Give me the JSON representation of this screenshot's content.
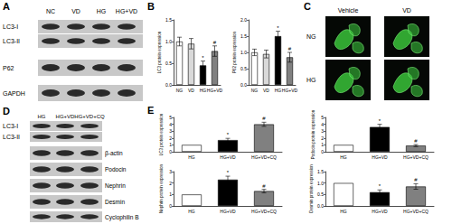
{
  "panels": {
    "A": {
      "label": "A",
      "lanes": [
        "NC",
        "VD",
        "HG",
        "HG+VD"
      ],
      "bands": [
        "LC3-I",
        "LC3-II",
        "P62",
        "GAPDH"
      ]
    },
    "B": {
      "label": "B"
    },
    "C": {
      "label": "C",
      "columns": [
        "Vehicle",
        "VD"
      ],
      "rows": [
        "NG",
        "HG"
      ]
    },
    "D": {
      "label": "D",
      "lanes": [
        "HG",
        "HG+VD",
        "HG+VD+CQ"
      ],
      "bands": [
        "LC3-I",
        "LC3-II",
        "β-actin",
        "Podocin",
        "Nephrin",
        "Desmin",
        "Cyclophilin B"
      ]
    },
    "E": {
      "label": "E"
    }
  },
  "chart_data": [
    {
      "type": "bar",
      "y_label": "LC3 protein expression",
      "categories": [
        "NG",
        "VD",
        "HG",
        "HG+VD"
      ],
      "values": [
        1.0,
        0.95,
        0.45,
        0.78
      ],
      "errors": [
        0.1,
        0.12,
        0.1,
        0.12
      ],
      "annotations": [
        null,
        null,
        "*",
        "#"
      ],
      "colors": [
        "#ffffff",
        "#d9d9d9",
        "#000000",
        "#808080"
      ],
      "ylim": [
        0,
        1.5
      ],
      "yticks": [
        {
          "value": 0,
          "label": "0.0"
        },
        {
          "value": 0.5,
          "label": "0.5"
        },
        {
          "value": 1,
          "label": "1.0"
        },
        {
          "value": 1.5,
          "label": "1.5"
        }
      ]
    },
    {
      "type": "bar",
      "y_label": "P62 protein expression",
      "categories": [
        "NG",
        "VD",
        "HG",
        "HG+VD"
      ],
      "values": [
        1.0,
        0.95,
        1.5,
        0.85
      ],
      "errors": [
        0.1,
        0.12,
        0.15,
        0.15
      ],
      "annotations": [
        null,
        null,
        "*",
        "#"
      ],
      "colors": [
        "#ffffff",
        "#d9d9d9",
        "#000000",
        "#808080"
      ],
      "ylim": [
        0,
        2
      ],
      "yticks": [
        {
          "value": 0,
          "label": "0.0"
        },
        {
          "value": 0.5,
          "label": "0.5"
        },
        {
          "value": 1,
          "label": "1.0"
        },
        {
          "value": 1.5,
          "label": "1.5"
        },
        {
          "value": 2,
          "label": "2.0"
        }
      ]
    },
    {
      "type": "bar",
      "y_label": "LC3 protein expression",
      "categories": [
        "HG",
        "HG+VD",
        "HG+VD+CQ"
      ],
      "values": [
        1.0,
        1.7,
        4.0
      ],
      "errors": [
        0,
        0.25,
        0.3
      ],
      "annotations": [
        null,
        "*",
        "#"
      ],
      "colors": [
        "#ffffff",
        "#000000",
        "#808080"
      ],
      "ylim": [
        0,
        5
      ],
      "yticks": [
        0,
        1,
        2,
        3,
        4,
        5
      ]
    },
    {
      "type": "bar",
      "y_label": "Podocin protein expression",
      "categories": [
        "HG",
        "HG+VD",
        "HG+VD+CQ"
      ],
      "values": [
        1.0,
        3.6,
        0.9
      ],
      "errors": [
        0,
        0.4,
        0.15
      ],
      "annotations": [
        null,
        "*",
        "#"
      ],
      "colors": [
        "#ffffff",
        "#000000",
        "#808080"
      ],
      "ylim": [
        0,
        5
      ],
      "yticks": [
        0,
        1,
        2,
        3,
        4,
        5
      ]
    },
    {
      "type": "bar",
      "y_label": "Nephrin protein expression",
      "categories": [
        "HG",
        "HG+VD",
        "HG+VD+CQ"
      ],
      "values": [
        1.0,
        2.3,
        1.3
      ],
      "errors": [
        0,
        0.3,
        0.15
      ],
      "annotations": [
        null,
        "*",
        "#"
      ],
      "colors": [
        "#ffffff",
        "#000000",
        "#808080"
      ],
      "ylim": [
        0,
        3
      ],
      "yticks": [
        0,
        1,
        2,
        3
      ]
    },
    {
      "type": "bar",
      "y_label": "Desmin protein expression",
      "categories": [
        "HG",
        "HG+VD",
        "HG+VD+CQ"
      ],
      "values": [
        1.0,
        0.6,
        0.85
      ],
      "errors": [
        0,
        0.1,
        0.12
      ],
      "annotations": [
        null,
        "*",
        "#"
      ],
      "colors": [
        "#ffffff",
        "#000000",
        "#808080"
      ],
      "ylim": [
        0,
        1.5
      ],
      "yticks": [
        {
          "value": 0,
          "label": "0.0"
        },
        {
          "value": 0.5,
          "label": "0.5"
        },
        {
          "value": 1,
          "label": "1.0"
        },
        {
          "value": 1.5,
          "label": "1.5"
        }
      ]
    }
  ]
}
